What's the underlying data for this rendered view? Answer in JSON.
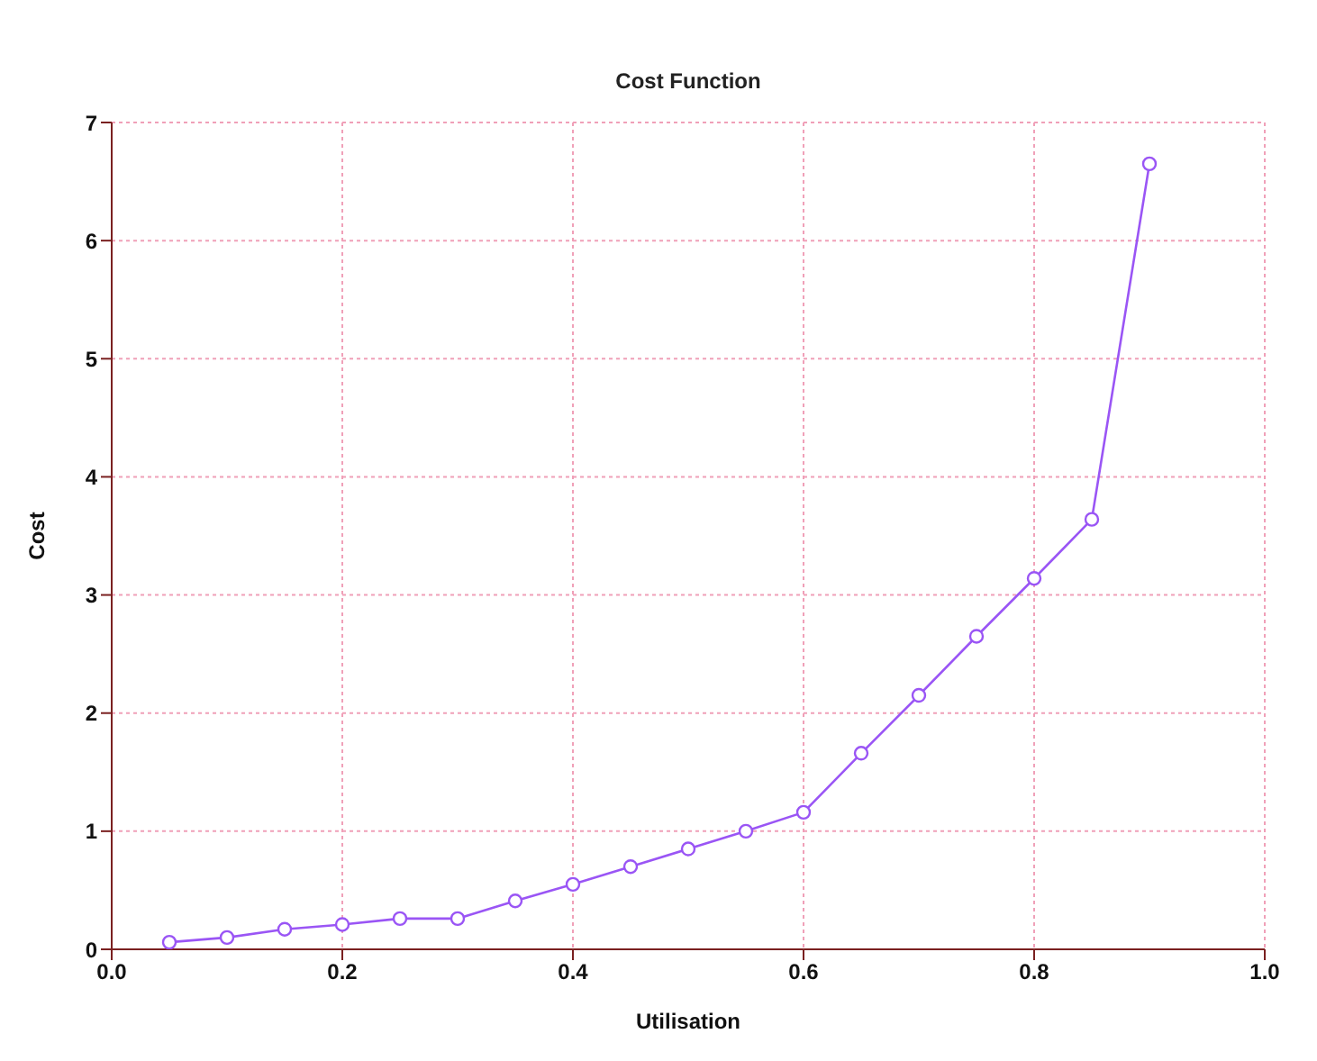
{
  "chart_data": {
    "type": "line",
    "title": "Cost Function",
    "xlabel": "Utilisation",
    "ylabel": "Cost",
    "x": [
      0.05,
      0.1,
      0.15,
      0.2,
      0.25,
      0.3,
      0.35,
      0.4,
      0.45,
      0.5,
      0.55,
      0.6,
      0.65,
      0.7,
      0.75,
      0.8,
      0.85,
      0.9
    ],
    "series": [
      {
        "color": "#9a55f5",
        "values": [
          0.06,
          0.1,
          0.17,
          0.21,
          0.26,
          0.26,
          0.41,
          0.55,
          0.7,
          0.85,
          1.0,
          1.16,
          1.66,
          2.15,
          2.65,
          3.14,
          3.64,
          6.65
        ]
      }
    ],
    "xlim": [
      0,
      1
    ],
    "xticks": [
      {
        "value": 0,
        "label": "0.0"
      },
      0.2,
      0.4,
      0.6,
      0.8,
      {
        "value": 1,
        "label": "1.0"
      }
    ],
    "ylim": [
      0,
      7
    ],
    "yticks": [
      0,
      1,
      2,
      3,
      4,
      5,
      6,
      7
    ],
    "grid": true,
    "marker": "circle",
    "line_style": "solid"
  }
}
